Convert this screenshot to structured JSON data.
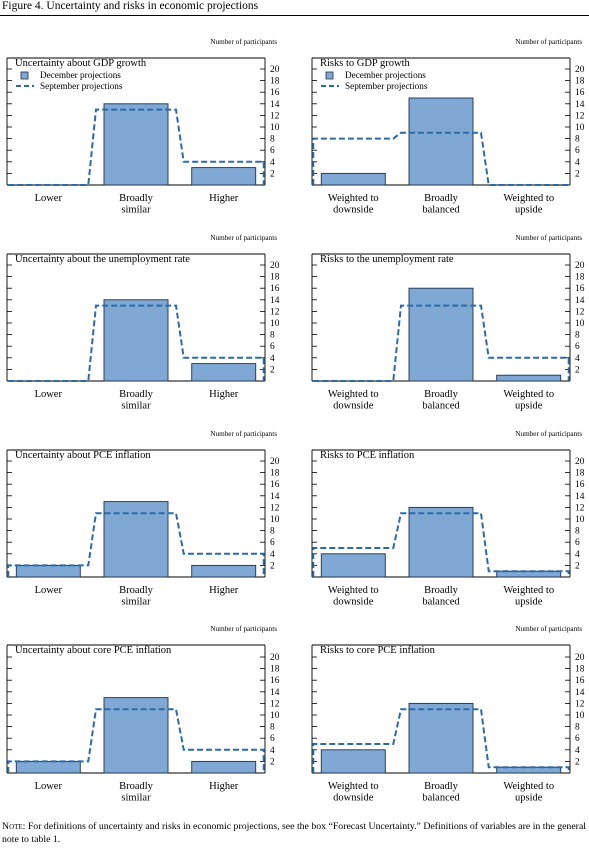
{
  "figure_title": "Figure 4. Uncertainty and risks in economic projections",
  "note": {
    "label": "Note:",
    "text": "For definitions of uncertainty and risks in economic projections, see the box “Forecast Uncertainty.” Definitions of  variables are in the general note to table 1."
  },
  "colors": {
    "bar_fill": "#7fa9d4",
    "bar_stroke": "#1f2f4d",
    "dashed_line": "#2e6aa6"
  },
  "chart_data": [
    {
      "type": "bar",
      "title": "Uncertainty about GDP growth",
      "ylabel": "Number of participants",
      "categories": [
        "Lower",
        "Broadly similar",
        "Higher"
      ],
      "series": [
        {
          "name": "December projections",
          "values": [
            0,
            14,
            3
          ]
        },
        {
          "name": "September projections",
          "values": [
            0,
            13,
            4
          ]
        }
      ],
      "legend": [
        "December projections",
        "September projections"
      ],
      "legend_position": "top-left",
      "yticks": [
        2,
        4,
        6,
        8,
        10,
        12,
        14,
        16,
        18,
        20
      ],
      "ylim": [
        0,
        20
      ]
    },
    {
      "type": "bar",
      "title": "Risks to GDP growth",
      "ylabel": "Number of participants",
      "categories": [
        "Weighted to downside",
        "Broadly balanced",
        "Weighted to upside"
      ],
      "series": [
        {
          "name": "December projections",
          "values": [
            2,
            15,
            0
          ]
        },
        {
          "name": "September projections",
          "values": [
            8,
            9,
            0
          ]
        }
      ],
      "legend": [
        "December projections",
        "September projections"
      ],
      "legend_position": "top-left",
      "yticks": [
        2,
        4,
        6,
        8,
        10,
        12,
        14,
        16,
        18,
        20
      ],
      "ylim": [
        0,
        20
      ]
    },
    {
      "type": "bar",
      "title": "Uncertainty about the unemployment rate",
      "ylabel": "Number of participants",
      "categories": [
        "Lower",
        "Broadly similar",
        "Higher"
      ],
      "series": [
        {
          "name": "December projections",
          "values": [
            0,
            14,
            3
          ]
        },
        {
          "name": "September projections",
          "values": [
            0,
            13,
            4
          ]
        }
      ],
      "yticks": [
        2,
        4,
        6,
        8,
        10,
        12,
        14,
        16,
        18,
        20
      ],
      "ylim": [
        0,
        20
      ]
    },
    {
      "type": "bar",
      "title": "Risks to the unemployment rate",
      "ylabel": "Number of participants",
      "categories": [
        "Weighted to downside",
        "Broadly balanced",
        "Weighted to upside"
      ],
      "series": [
        {
          "name": "December projections",
          "values": [
            0,
            16,
            1
          ]
        },
        {
          "name": "September projections",
          "values": [
            0,
            13,
            4
          ]
        }
      ],
      "yticks": [
        2,
        4,
        6,
        8,
        10,
        12,
        14,
        16,
        18,
        20
      ],
      "ylim": [
        0,
        20
      ]
    },
    {
      "type": "bar",
      "title": "Uncertainty about PCE inflation",
      "ylabel": "Number of participants",
      "categories": [
        "Lower",
        "Broadly similar",
        "Higher"
      ],
      "series": [
        {
          "name": "December projections",
          "values": [
            2,
            13,
            2
          ]
        },
        {
          "name": "September projections",
          "values": [
            2,
            11,
            4
          ]
        }
      ],
      "yticks": [
        2,
        4,
        6,
        8,
        10,
        12,
        14,
        16,
        18,
        20
      ],
      "ylim": [
        0,
        20
      ]
    },
    {
      "type": "bar",
      "title": "Risks to PCE inflation",
      "ylabel": "Number of participants",
      "categories": [
        "Weighted to downside",
        "Broadly balanced",
        "Weighted to upside"
      ],
      "series": [
        {
          "name": "December projections",
          "values": [
            4,
            12,
            1
          ]
        },
        {
          "name": "September projections",
          "values": [
            5,
            11,
            1
          ]
        }
      ],
      "yticks": [
        2,
        4,
        6,
        8,
        10,
        12,
        14,
        16,
        18,
        20
      ],
      "ylim": [
        0,
        20
      ]
    },
    {
      "type": "bar",
      "title": "Uncertainty about core PCE inflation",
      "ylabel": "Number of participants",
      "categories": [
        "Lower",
        "Broadly similar",
        "Higher"
      ],
      "series": [
        {
          "name": "December projections",
          "values": [
            2,
            13,
            2
          ]
        },
        {
          "name": "September projections",
          "values": [
            2,
            11,
            4
          ]
        }
      ],
      "yticks": [
        2,
        4,
        6,
        8,
        10,
        12,
        14,
        16,
        18,
        20
      ],
      "ylim": [
        0,
        20
      ]
    },
    {
      "type": "bar",
      "title": "Risks to core PCE inflation",
      "ylabel": "Number of participants",
      "categories": [
        "Weighted to downside",
        "Broadly balanced",
        "Weighted to upside"
      ],
      "series": [
        {
          "name": "December projections",
          "values": [
            4,
            12,
            1
          ]
        },
        {
          "name": "September projections",
          "values": [
            5,
            11,
            1
          ]
        }
      ],
      "yticks": [
        2,
        4,
        6,
        8,
        10,
        12,
        14,
        16,
        18,
        20
      ],
      "ylim": [
        0,
        20
      ]
    }
  ]
}
